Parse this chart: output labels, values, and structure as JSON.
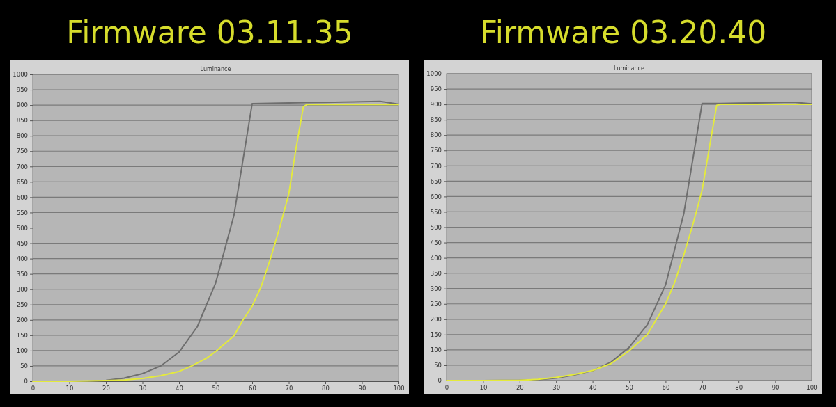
{
  "chart_data": [
    {
      "type": "line",
      "title": "Firmware 03.11.35",
      "subtitle": "Luminance",
      "xlim": [
        0,
        100
      ],
      "xticks": [
        0,
        10,
        20,
        30,
        40,
        50,
        60,
        70,
        80,
        90,
        100
      ],
      "ylim": [
        0,
        1000
      ],
      "yticks": [
        0,
        50,
        100,
        150,
        200,
        250,
        300,
        350,
        400,
        450,
        500,
        550,
        600,
        650,
        700,
        750,
        800,
        850,
        900,
        950,
        1000
      ],
      "grid": "y",
      "marker": "none",
      "line_style": "solid",
      "series": [
        {
          "color": "#6e6e6e",
          "x": [
            0,
            5,
            10,
            15,
            20,
            25,
            30,
            35,
            40,
            45,
            50,
            55,
            60,
            65,
            70,
            75,
            80,
            85,
            90,
            95,
            100
          ],
          "values": [
            0,
            0,
            0,
            0,
            3,
            10,
            25,
            50,
            95,
            178,
            320,
            540,
            905,
            906,
            907,
            908,
            909,
            910,
            911,
            912,
            903
          ]
        },
        {
          "color": "#e4ea3c",
          "x": [
            0,
            10,
            20,
            25,
            30,
            35,
            40,
            43.5,
            47.5,
            50,
            55,
            57.5,
            60,
            62.5,
            65,
            67.5,
            70,
            72,
            74,
            75,
            80,
            90,
            100
          ],
          "values": [
            0,
            0,
            2,
            4,
            9,
            18,
            32,
            50,
            75,
            97,
            148,
            200,
            245,
            310,
            400,
            500,
            610,
            760,
            895,
            902,
            902,
            902,
            902
          ]
        }
      ]
    },
    {
      "type": "line",
      "title": "Firmware 03.20.40",
      "subtitle": "Luminance",
      "xlim": [
        0,
        100
      ],
      "xticks": [
        0,
        10,
        20,
        30,
        40,
        50,
        60,
        70,
        80,
        90,
        100
      ],
      "ylim": [
        0,
        1000
      ],
      "yticks": [
        0,
        50,
        100,
        150,
        200,
        250,
        300,
        350,
        400,
        450,
        500,
        550,
        600,
        650,
        700,
        750,
        800,
        850,
        900,
        950,
        1000
      ],
      "grid": "y",
      "marker": "none",
      "line_style": "solid",
      "series": [
        {
          "color": "#6e6e6e",
          "x": [
            0,
            10,
            20,
            25,
            30,
            35,
            40,
            45,
            50,
            55,
            60,
            65,
            70,
            75,
            80,
            85,
            90,
            95,
            100
          ],
          "values": [
            0,
            0,
            1,
            3,
            8,
            18,
            32,
            60,
            108,
            182,
            312,
            545,
            903,
            903,
            904,
            905,
            906,
            907,
            902
          ]
        },
        {
          "color": "#e4ea3c",
          "x": [
            0,
            10,
            20,
            25,
            30,
            35,
            40,
            45,
            50,
            55,
            57.5,
            60,
            62.5,
            65,
            67.5,
            70,
            72,
            74,
            75,
            80,
            95,
            100
          ],
          "values": [
            0,
            0,
            1,
            4,
            10,
            20,
            33,
            55,
            97,
            150,
            200,
            250,
            320,
            410,
            510,
            620,
            760,
            897,
            900,
            900,
            900,
            900
          ]
        }
      ]
    }
  ]
}
